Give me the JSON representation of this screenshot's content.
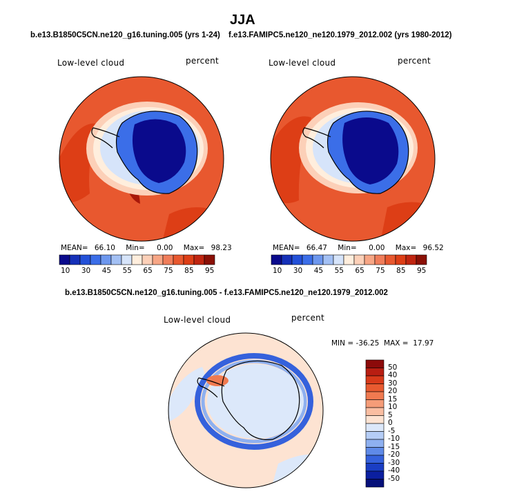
{
  "figure": {
    "season_title": "JJA",
    "left_case": "b.e13.B1850C5CN.ne120_g16.tuning.005 (yrs 1-24)",
    "right_case": "f.e13.FAMIPC5.ne120_ne120.1979_2012.002 (yrs 1980-2012)",
    "diff_title": "b.e13.B1850C5CN.ne120_g16.tuning.005 - f.e13.FAMIPC5.ne120_ne120.1979_2012.002"
  },
  "chart_data": [
    {
      "type": "heatmap",
      "name": "model",
      "variable": "Low-level cloud",
      "units": "percent",
      "projection": "south polar stereographic",
      "stats": {
        "mean_label": "MEAN=",
        "mean": "66.10",
        "min_label": "Min=",
        "min": "0.00",
        "max_label": "Max=",
        "max": "98.23"
      },
      "colorbar_levels": [
        10,
        30,
        45,
        55,
        65,
        75,
        85,
        95
      ],
      "colorbar_colors": [
        "#0a0a8c",
        "#1530b8",
        "#2350d8",
        "#3b6ee8",
        "#6d97ee",
        "#a3c0f4",
        "#d6e4fa",
        "#ffeedd",
        "#fcd0b8",
        "#f7a685",
        "#f07d5a",
        "#e8582f",
        "#dd3e16",
        "#c02510",
        "#8a1006"
      ]
    },
    {
      "type": "heatmap",
      "name": "observation",
      "variable": "Low-level cloud",
      "units": "percent",
      "projection": "south polar stereographic",
      "stats": {
        "mean_label": "MEAN=",
        "mean": "66.47",
        "min_label": "Min=",
        "min": "0.00",
        "max_label": "Max=",
        "max": "96.52"
      },
      "colorbar_levels": [
        10,
        30,
        45,
        55,
        65,
        75,
        85,
        95
      ],
      "colorbar_colors": [
        "#0a0a8c",
        "#1530b8",
        "#2350d8",
        "#3b6ee8",
        "#6d97ee",
        "#a3c0f4",
        "#d6e4fa",
        "#ffeedd",
        "#fcd0b8",
        "#f7a685",
        "#f07d5a",
        "#e8582f",
        "#dd3e16",
        "#c02510",
        "#8a1006"
      ]
    },
    {
      "type": "heatmap",
      "name": "difference",
      "variable": "Low-level cloud",
      "units": "percent",
      "projection": "south polar stereographic",
      "stats": {
        "text": "MIN = -36.25  MAX =  17.97"
      },
      "colorbar_levels": [
        50,
        40,
        30,
        20,
        15,
        10,
        5,
        0,
        -5,
        -10,
        -15,
        -20,
        -30,
        -40,
        -50
      ],
      "colorbar_colors": [
        "#8c0a0a",
        "#b81e12",
        "#d83a1a",
        "#e85a30",
        "#f07a50",
        "#f59c78",
        "#fabea2",
        "#fde3d2",
        "#dce8fa",
        "#b5cdf6",
        "#8eb0f0",
        "#5f8ae8",
        "#3561dc",
        "#1a3ec4",
        "#0b1fa0",
        "#06107a"
      ]
    }
  ]
}
